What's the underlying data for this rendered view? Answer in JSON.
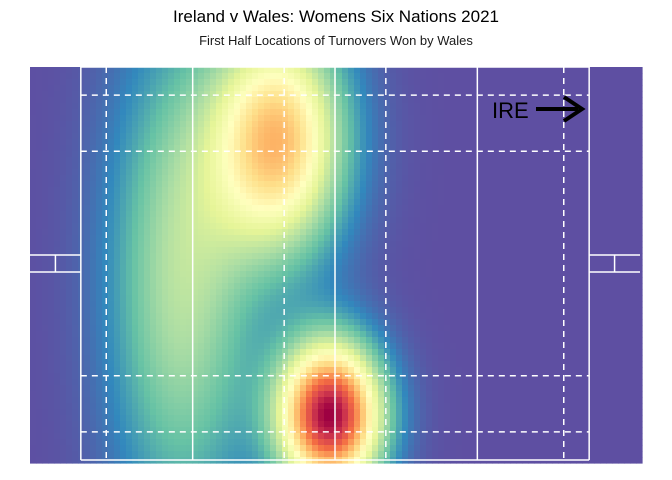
{
  "title": "Ireland v Wales: Womens Six Nations 2021",
  "subtitle": "First Half Locations of Turnovers Won by Wales",
  "direction_label": "IRE",
  "chart_data": {
    "type": "heatmap",
    "title": "Ireland v Wales: Womens Six Nations 2021",
    "subtitle": "First Half Locations of Turnovers Won by Wales",
    "attack_direction": "IRE",
    "pitch": {
      "length_m": 100,
      "width_m": 70,
      "in_goal_m": 10
    },
    "density_peaks": [
      {
        "x_m": 39,
        "y_m": 57,
        "intensity": 0.65
      },
      {
        "x_m": 49,
        "y_m": 8,
        "intensity": 1.0
      },
      {
        "x_m": 20,
        "y_m": 32,
        "intensity": 0.32
      }
    ],
    "colormap": [
      "#5e4fa2",
      "#3288bd",
      "#66c2a5",
      "#abdda4",
      "#e6f598",
      "#ffffbf",
      "#fee08b",
      "#fdae61",
      "#f46d43",
      "#d53e4f",
      "#9e0142"
    ],
    "grid": false,
    "legend": "none"
  }
}
